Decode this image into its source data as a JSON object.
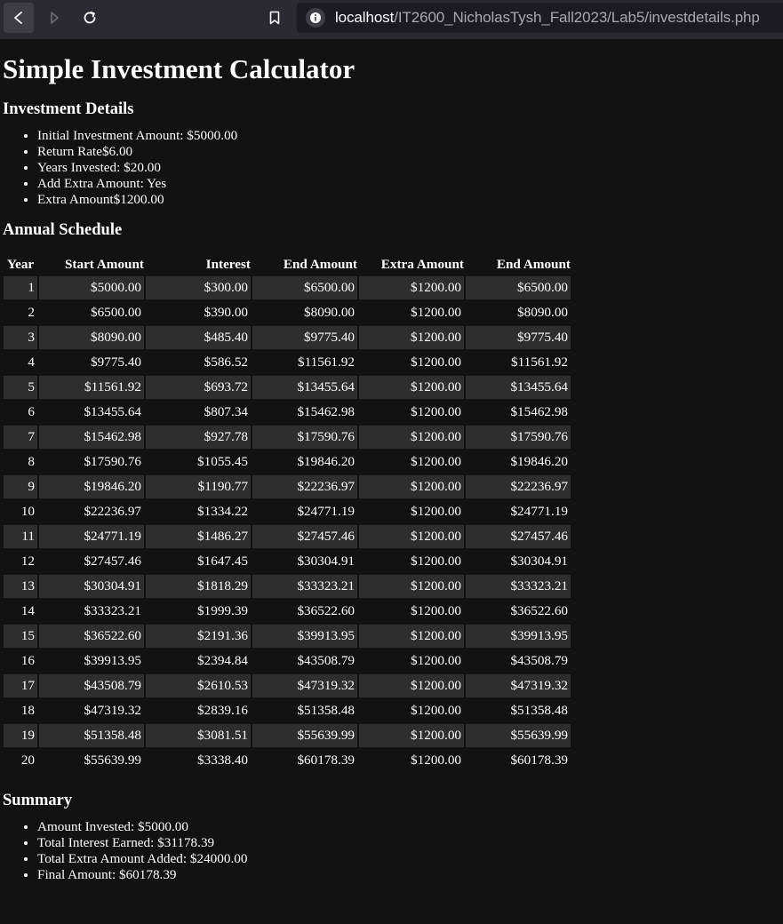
{
  "browser": {
    "url_host": "localhost",
    "url_path": "/IT2600_NicholasTysh_Fall2023/Lab5/investdetails.php"
  },
  "page": {
    "title": "Simple Investment Calculator",
    "details_heading": "Investment Details",
    "details": [
      "Initial Investment Amount: $5000.00",
      "Return Rate$6.00",
      "Years Invested: $20.00",
      "Add Extra Amount: Yes",
      "Extra Amount$1200.00"
    ],
    "schedule_heading": "Annual Schedule",
    "table_headers": [
      "Year",
      "Start Amount",
      "Interest",
      "End Amount",
      "Extra Amount",
      "End Amount"
    ],
    "rows": [
      [
        "1",
        "$5000.00",
        "$300.00",
        "$6500.00",
        "$1200.00",
        "$6500.00"
      ],
      [
        "2",
        "$6500.00",
        "$390.00",
        "$8090.00",
        "$1200.00",
        "$8090.00"
      ],
      [
        "3",
        "$8090.00",
        "$485.40",
        "$9775.40",
        "$1200.00",
        "$9775.40"
      ],
      [
        "4",
        "$9775.40",
        "$586.52",
        "$11561.92",
        "$1200.00",
        "$11561.92"
      ],
      [
        "5",
        "$11561.92",
        "$693.72",
        "$13455.64",
        "$1200.00",
        "$13455.64"
      ],
      [
        "6",
        "$13455.64",
        "$807.34",
        "$15462.98",
        "$1200.00",
        "$15462.98"
      ],
      [
        "7",
        "$15462.98",
        "$927.78",
        "$17590.76",
        "$1200.00",
        "$17590.76"
      ],
      [
        "8",
        "$17590.76",
        "$1055.45",
        "$19846.20",
        "$1200.00",
        "$19846.20"
      ],
      [
        "9",
        "$19846.20",
        "$1190.77",
        "$22236.97",
        "$1200.00",
        "$22236.97"
      ],
      [
        "10",
        "$22236.97",
        "$1334.22",
        "$24771.19",
        "$1200.00",
        "$24771.19"
      ],
      [
        "11",
        "$24771.19",
        "$1486.27",
        "$27457.46",
        "$1200.00",
        "$27457.46"
      ],
      [
        "12",
        "$27457.46",
        "$1647.45",
        "$30304.91",
        "$1200.00",
        "$30304.91"
      ],
      [
        "13",
        "$30304.91",
        "$1818.29",
        "$33323.21",
        "$1200.00",
        "$33323.21"
      ],
      [
        "14",
        "$33323.21",
        "$1999.39",
        "$36522.60",
        "$1200.00",
        "$36522.60"
      ],
      [
        "15",
        "$36522.60",
        "$2191.36",
        "$39913.95",
        "$1200.00",
        "$39913.95"
      ],
      [
        "16",
        "$39913.95",
        "$2394.84",
        "$43508.79",
        "$1200.00",
        "$43508.79"
      ],
      [
        "17",
        "$43508.79",
        "$2610.53",
        "$47319.32",
        "$1200.00",
        "$47319.32"
      ],
      [
        "18",
        "$47319.32",
        "$2839.16",
        "$51358.48",
        "$1200.00",
        "$51358.48"
      ],
      [
        "19",
        "$51358.48",
        "$3081.51",
        "$55639.99",
        "$1200.00",
        "$55639.99"
      ],
      [
        "20",
        "$55639.99",
        "$3338.40",
        "$60178.39",
        "$1200.00",
        "$60178.39"
      ]
    ],
    "summary_heading": "Summary",
    "summary": [
      "Amount Invested: $5000.00",
      "Total Interest Earned: $31178.39",
      "Total Extra Amount Added: $24000.00",
      "Final Amount: $60178.39"
    ]
  }
}
